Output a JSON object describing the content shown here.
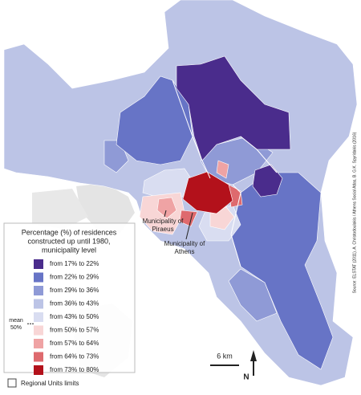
{
  "legend": {
    "title": [
      "Percentage (%) of residences",
      "constructed up until 1980,",
      "municipality level"
    ],
    "items": [
      {
        "label": "from 17% to 22%",
        "color": "#4a2c8c"
      },
      {
        "label": "from 22% to 29%",
        "color": "#6774c6"
      },
      {
        "label": "from 29% to 36%",
        "color": "#8f9ad6"
      },
      {
        "label": "from 36% to 43%",
        "color": "#bcc4e6"
      },
      {
        "label": "from 43% to 50%",
        "color": "#d9ddf1"
      },
      {
        "label": "from 50% to 57%",
        "color": "#f8d6d6"
      },
      {
        "label": "from 57% to 64%",
        "color": "#efa3a4"
      },
      {
        "label": "from 64% to 73%",
        "color": "#de6a6e"
      },
      {
        "label": "from 73% to 80%",
        "color": "#b3111b"
      }
    ],
    "mean_label": [
      "mean",
      "50%"
    ],
    "regional_units": "Regional Units limits"
  },
  "annotations": {
    "piraeus": [
      "Municipality of",
      "Piraeus"
    ],
    "athens": [
      "Municipality of",
      "Athens"
    ]
  },
  "scale": "6 km",
  "north": "N",
  "source": "Source: ELSTAT (2011), A. Christodoulakis / Athens Social Atlas, B. G.K. Spyridakis (2016)"
}
